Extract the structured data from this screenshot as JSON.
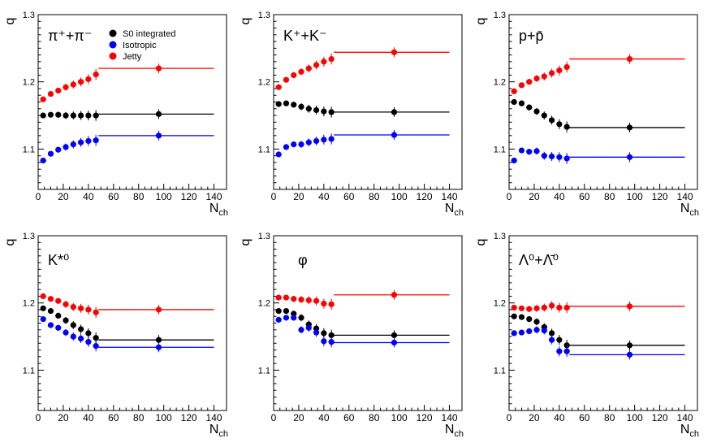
{
  "chart_data": [
    {
      "type": "scatter",
      "title": "π⁺+π⁻",
      "xlabel": "N_ch",
      "ylabel": "q",
      "xlim": [
        0,
        150
      ],
      "ylim": [
        1.04,
        1.3
      ],
      "xticks": [
        "0",
        "20",
        "40",
        "60",
        "80",
        "100",
        "120",
        "140"
      ],
      "yticks": [
        "1.1",
        "1.2",
        "1.3"
      ],
      "x": [
        4,
        10,
        16,
        22,
        28,
        34,
        40,
        46
      ],
      "high_mult": {
        "x": 96,
        "range": [
          48,
          140
        ]
      },
      "series": [
        {
          "name": "S0 integrated",
          "color": "#000000",
          "values": [
            1.15,
            1.151,
            1.151,
            1.15,
            1.15,
            1.15,
            1.15,
            1.15
          ],
          "high_mult": 1.152
        },
        {
          "name": "Isotropic",
          "color": "#0000ff",
          "values": [
            1.083,
            1.093,
            1.099,
            1.103,
            1.107,
            1.11,
            1.112,
            1.113
          ],
          "high_mult": 1.12
        },
        {
          "name": "Jetty",
          "color": "#ff0000",
          "values": [
            1.174,
            1.182,
            1.187,
            1.192,
            1.196,
            1.2,
            1.204,
            1.211
          ],
          "high_mult": 1.22
        }
      ],
      "legend": {
        "position": "top",
        "labels": [
          "S0 integrated",
          "Isotropic",
          "Jetty"
        ]
      }
    },
    {
      "type": "scatter",
      "title": "K⁺+K⁻",
      "xlabel": "N_ch",
      "ylabel": "q",
      "xlim": [
        0,
        150
      ],
      "ylim": [
        1.04,
        1.3
      ],
      "xticks": [
        "0",
        "20",
        "40",
        "60",
        "80",
        "100",
        "120",
        "140"
      ],
      "yticks": [
        "1.1",
        "1.2",
        "1.3"
      ],
      "x": [
        4,
        10,
        16,
        22,
        28,
        34,
        40,
        46
      ],
      "high_mult": {
        "x": 96,
        "range": [
          48,
          140
        ]
      },
      "series": [
        {
          "name": "S0 integrated",
          "color": "#000000",
          "values": [
            1.167,
            1.168,
            1.166,
            1.163,
            1.16,
            1.158,
            1.156,
            1.155
          ],
          "high_mult": 1.155
        },
        {
          "name": "Isotropic",
          "color": "#0000ff",
          "values": [
            1.092,
            1.103,
            1.107,
            1.107,
            1.11,
            1.112,
            1.114,
            1.115
          ],
          "high_mult": 1.121
        },
        {
          "name": "Jetty",
          "color": "#ff0000",
          "values": [
            1.192,
            1.203,
            1.21,
            1.215,
            1.22,
            1.225,
            1.23,
            1.234
          ],
          "high_mult": 1.244
        }
      ]
    },
    {
      "type": "scatter",
      "title": "p+p̄",
      "xlabel": "N_ch",
      "ylabel": "q",
      "xlim": [
        0,
        150
      ],
      "ylim": [
        1.04,
        1.3
      ],
      "xticks": [
        "0",
        "20",
        "40",
        "60",
        "80",
        "100",
        "120",
        "140"
      ],
      "yticks": [
        "1.1",
        "1.2",
        "1.3"
      ],
      "x": [
        4,
        10,
        16,
        22,
        28,
        34,
        40,
        46
      ],
      "high_mult": {
        "x": 96,
        "range": [
          48,
          140
        ]
      },
      "series": [
        {
          "name": "S0 integrated",
          "color": "#000000",
          "values": [
            1.17,
            1.168,
            1.162,
            1.156,
            1.15,
            1.143,
            1.137,
            1.133
          ],
          "high_mult": 1.132
        },
        {
          "name": "Isotropic",
          "color": "#0000ff",
          "values": [
            1.083,
            1.098,
            1.096,
            1.097,
            1.09,
            1.089,
            1.088,
            1.086
          ],
          "high_mult": 1.088
        },
        {
          "name": "Jetty",
          "color": "#ff0000",
          "values": [
            1.186,
            1.195,
            1.2,
            1.205,
            1.208,
            1.213,
            1.217,
            1.222
          ],
          "high_mult": 1.234
        }
      ]
    },
    {
      "type": "scatter",
      "title": "K*⁰",
      "xlabel": "N_ch",
      "ylabel": "q",
      "xlim": [
        0,
        150
      ],
      "ylim": [
        1.04,
        1.3
      ],
      "xticks": [
        "0",
        "20",
        "40",
        "60",
        "80",
        "100",
        "120",
        "140"
      ],
      "yticks": [
        "1.1",
        "1.2",
        "1.3"
      ],
      "x": [
        4,
        10,
        16,
        22,
        28,
        34,
        40,
        46
      ],
      "high_mult": {
        "x": 96,
        "range": [
          48,
          140
        ]
      },
      "series": [
        {
          "name": "S0 integrated",
          "color": "#000000",
          "values": [
            1.192,
            1.188,
            1.181,
            1.174,
            1.167,
            1.161,
            1.155,
            1.148
          ],
          "high_mult": 1.145
        },
        {
          "name": "Isotropic",
          "color": "#0000ff",
          "values": [
            1.176,
            1.167,
            1.163,
            1.156,
            1.15,
            1.147,
            1.142,
            1.136
          ],
          "high_mult": 1.134
        },
        {
          "name": "Jetty",
          "color": "#ff0000",
          "values": [
            1.21,
            1.206,
            1.203,
            1.198,
            1.194,
            1.192,
            1.19,
            1.186
          ],
          "high_mult": 1.19
        }
      ]
    },
    {
      "type": "scatter",
      "title": "φ",
      "xlabel": "N_ch",
      "ylabel": "q",
      "xlim": [
        0,
        150
      ],
      "ylim": [
        1.04,
        1.3
      ],
      "xticks": [
        "0",
        "20",
        "40",
        "60",
        "80",
        "100",
        "120",
        "140"
      ],
      "yticks": [
        "1.1",
        "1.2",
        "1.3"
      ],
      "x": [
        4,
        10,
        16,
        22,
        28,
        34,
        40,
        46
      ],
      "high_mult": {
        "x": 96,
        "range": [
          48,
          140
        ]
      },
      "series": [
        {
          "name": "S0 integrated",
          "color": "#000000",
          "values": [
            1.188,
            1.188,
            1.184,
            1.178,
            1.168,
            1.162,
            1.155,
            1.152
          ],
          "high_mult": 1.152
        },
        {
          "name": "Isotropic",
          "color": "#0000ff",
          "values": [
            1.175,
            1.178,
            1.178,
            1.16,
            1.163,
            1.156,
            1.143,
            1.142
          ],
          "high_mult": 1.141
        },
        {
          "name": "Jetty",
          "color": "#ff0000",
          "values": [
            1.208,
            1.208,
            1.206,
            1.205,
            1.204,
            1.203,
            1.199,
            1.198
          ],
          "high_mult": 1.212
        }
      ]
    },
    {
      "type": "scatter",
      "title": "Λ⁰+Λ̄⁰",
      "xlabel": "N_ch",
      "ylabel": "q",
      "xlim": [
        0,
        150
      ],
      "ylim": [
        1.04,
        1.3
      ],
      "xticks": [
        "0",
        "20",
        "40",
        "60",
        "80",
        "100",
        "120",
        "140"
      ],
      "yticks": [
        "1.1",
        "1.2",
        "1.3"
      ],
      "x": [
        4,
        10,
        16,
        22,
        28,
        34,
        40,
        46
      ],
      "high_mult": {
        "x": 96,
        "range": [
          48,
          140
        ]
      },
      "series": [
        {
          "name": "S0 integrated",
          "color": "#000000",
          "values": [
            1.18,
            1.179,
            1.176,
            1.172,
            1.164,
            1.155,
            1.145,
            1.137
          ],
          "high_mult": 1.137
        },
        {
          "name": "Isotropic",
          "color": "#0000ff",
          "values": [
            1.155,
            1.156,
            1.158,
            1.16,
            1.159,
            1.145,
            1.128,
            1.128
          ],
          "high_mult": 1.123
        },
        {
          "name": "Jetty",
          "color": "#ff0000",
          "values": [
            1.193,
            1.192,
            1.191,
            1.192,
            1.193,
            1.196,
            1.193,
            1.193
          ],
          "high_mult": 1.195
        }
      ]
    }
  ]
}
